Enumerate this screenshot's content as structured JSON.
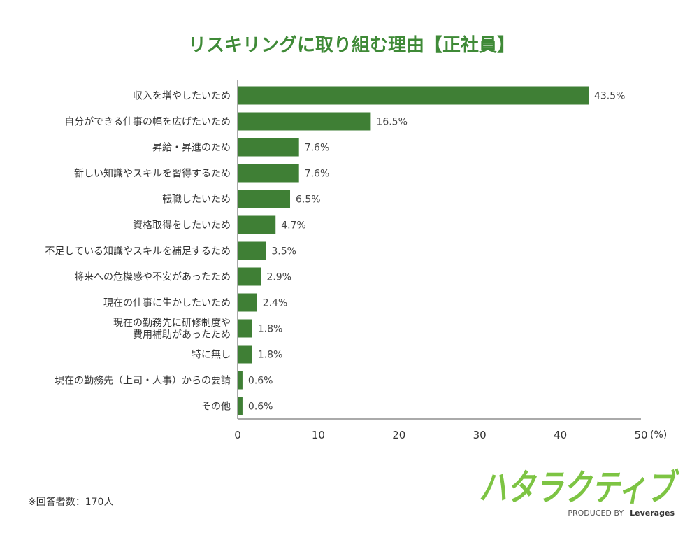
{
  "chart_data": {
    "type": "bar",
    "orientation": "horizontal",
    "title": "リスキリングに取り組む理由【正社員】",
    "categories": [
      [
        "収入を増やしたいため"
      ],
      [
        "自分ができる仕事の幅を広げたいため"
      ],
      [
        "昇給・昇進のため"
      ],
      [
        "新しい知識やスキルを習得するため"
      ],
      [
        "転職したいため"
      ],
      [
        "資格取得をしたいため"
      ],
      [
        "不足している知識やスキルを補足するため"
      ],
      [
        "将来への危機感や不安があったため"
      ],
      [
        "現在の仕事に生かしたいため"
      ],
      [
        "現在の勤務先に研修制度や",
        "費用補助があったため"
      ],
      [
        "特に無し"
      ],
      [
        "現在の勤務先（上司・人事）からの要請"
      ],
      [
        "その他"
      ]
    ],
    "values": [
      43.5,
      16.5,
      7.6,
      7.6,
      6.5,
      4.7,
      3.5,
      2.9,
      2.4,
      1.8,
      1.8,
      0.6,
      0.6
    ],
    "value_labels": [
      "43.5%",
      "16.5%",
      "7.6%",
      "7.6%",
      "6.5%",
      "4.7%",
      "3.5%",
      "2.9%",
      "2.4%",
      "1.8%",
      "1.8%",
      "0.6%",
      "0.6%"
    ],
    "xlim": [
      0,
      50
    ],
    "xticks": [
      "0",
      "10",
      "20",
      "30",
      "40",
      "50"
    ],
    "xtick_values": [
      0,
      10,
      20,
      30,
      40,
      50
    ],
    "unit": "(%)",
    "bar_color": "#3f7f35",
    "grid": false
  },
  "footnote": "※回答者数：170人",
  "logo": {
    "text": "ハタラクティブ",
    "sub_prefix": "PRODUCED BY",
    "sub_brand": "Leverages",
    "color": "#7dc443"
  }
}
